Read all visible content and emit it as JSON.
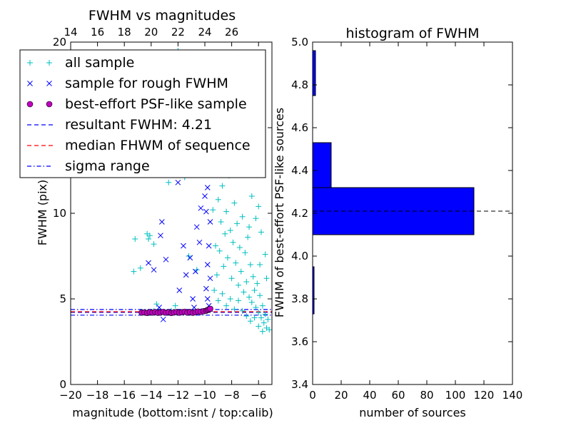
{
  "chart_data": [
    {
      "type": "scatter",
      "title": "FWHM vs magnitudes",
      "xlabel": "magnitude (bottom:isnt / top:calib)",
      "ylabel": "FWHM (pix)",
      "xlim": [
        -20,
        -5
      ],
      "ylim": [
        0,
        20
      ],
      "x_ticks": [
        -20,
        -18,
        -16,
        -14,
        -12,
        -10,
        -8,
        -6
      ],
      "x_tick_labels": [
        "−20",
        "−18",
        "−16",
        "−14",
        "−12",
        "−10",
        "−8",
        "−6"
      ],
      "y_ticks": [
        0,
        5,
        10,
        15,
        20
      ],
      "y_tick_labels": [
        "0",
        "5",
        "10",
        "15",
        "20"
      ],
      "top_axis": {
        "offset": 34,
        "ticks": [
          14,
          16,
          18,
          20,
          22,
          24,
          26
        ],
        "tick_labels": [
          "14",
          "16",
          "18",
          "20",
          "22",
          "24",
          "26"
        ]
      },
      "grid": false,
      "legend": {
        "placement": "upper-left",
        "entries": [
          {
            "label": "all sample",
            "marker": "+",
            "color": "#00bfbf"
          },
          {
            "label": "sample for rough FWHM",
            "marker": "x",
            "color": "#0000ff"
          },
          {
            "label": "best-effort PSF-like sample",
            "marker": "o",
            "color": "#bf00bf"
          },
          {
            "label": "resultant FWHM: 4.21",
            "linestyle": "dashed",
            "color": "#0000ff"
          },
          {
            "label": "median FHWM of sequence",
            "linestyle": "dashed",
            "color": "#ff0000"
          },
          {
            "label": "sigma range",
            "linestyle": "dashdot",
            "color": "#0000ff"
          }
        ]
      },
      "series": [
        {
          "name": "all sample",
          "marker": "+",
          "color": "#00bfbf",
          "points": [
            [
              -15.2,
              8.5
            ],
            [
              -14.3,
              8.8
            ],
            [
              -14.1,
              8.7
            ],
            [
              -13.8,
              8.2
            ],
            [
              -15.3,
              6.6
            ],
            [
              -14.8,
              6.8
            ],
            [
              -14.2,
              8.5
            ],
            [
              -14.2,
              15.2
            ],
            [
              -14.0,
              14.3
            ],
            [
              -12.7,
              11.8
            ],
            [
              -12.0,
              19.5
            ],
            [
              -11.8,
              19.3
            ],
            [
              -11.6,
              15.2
            ],
            [
              -10.5,
              14.8
            ],
            [
              -10.1,
              13.2
            ],
            [
              -11.5,
              12.1
            ],
            [
              -11.2,
              7.5
            ],
            [
              -10.6,
              6.7
            ],
            [
              -11.0,
              4.2
            ],
            [
              -12.5,
              4.3
            ],
            [
              -13.8,
              4.3
            ],
            [
              -13.6,
              4.7
            ],
            [
              -12.2,
              4.6
            ],
            [
              -9.5,
              12.5
            ],
            [
              -9.4,
              10.2
            ],
            [
              -9.2,
              8.1
            ],
            [
              -9.1,
              6.4
            ],
            [
              -9.0,
              10.8
            ],
            [
              -8.9,
              7.8
            ],
            [
              -8.8,
              9.5
            ],
            [
              -8.7,
              11.6
            ],
            [
              -8.6,
              6.9
            ],
            [
              -8.5,
              8.8
            ],
            [
              -8.4,
              10.1
            ],
            [
              -8.3,
              7.4
            ],
            [
              -8.2,
              12.2
            ],
            [
              -8.1,
              9.0
            ],
            [
              -8.0,
              6.2
            ],
            [
              -7.9,
              8.3
            ],
            [
              -7.8,
              10.6
            ],
            [
              -7.7,
              7.1
            ],
            [
              -7.6,
              9.4
            ],
            [
              -7.5,
              5.8
            ],
            [
              -7.4,
              8.0
            ],
            [
              -7.3,
              6.6
            ],
            [
              -7.2,
              9.8
            ],
            [
              -7.1,
              5.4
            ],
            [
              -7.0,
              7.7
            ],
            [
              -6.9,
              6.0
            ],
            [
              -6.8,
              8.6
            ],
            [
              -6.7,
              5.1
            ],
            [
              -6.6,
              7.0
            ],
            [
              -6.5,
              4.8
            ],
            [
              -6.4,
              6.3
            ],
            [
              -6.3,
              5.5
            ],
            [
              -6.2,
              4.5
            ],
            [
              -6.1,
              5.9
            ],
            [
              -6.0,
              4.2
            ],
            [
              -5.9,
              5.2
            ],
            [
              -5.8,
              3.9
            ],
            [
              -5.7,
              4.6
            ],
            [
              -5.6,
              3.6
            ],
            [
              -5.5,
              4.1
            ],
            [
              -5.4,
              3.3
            ],
            [
              -5.3,
              3.8
            ],
            [
              -5.2,
              3.2
            ],
            [
              -9.3,
              5.5
            ],
            [
              -9.0,
              4.9
            ],
            [
              -8.7,
              5.3
            ],
            [
              -8.4,
              4.6
            ],
            [
              -8.1,
              5.0
            ],
            [
              -7.8,
              4.4
            ],
            [
              -7.5,
              4.9
            ],
            [
              -7.2,
              4.3
            ],
            [
              -6.9,
              4.0
            ],
            [
              -6.6,
              3.7
            ],
            [
              -6.3,
              3.9
            ],
            [
              -6.0,
              3.4
            ],
            [
              -5.7,
              3.1
            ],
            [
              -9.6,
              14.5
            ],
            [
              -9.3,
              15.6
            ],
            [
              -9.0,
              13.9
            ],
            [
              -8.8,
              16.8
            ],
            [
              -8.5,
              14.7
            ],
            [
              -8.3,
              18.2
            ],
            [
              -8.0,
              15.3
            ],
            [
              -7.8,
              19.4
            ],
            [
              -7.5,
              16.2
            ],
            [
              -7.3,
              17.5
            ],
            [
              -7.0,
              14.0
            ],
            [
              -6.8,
              12.7
            ],
            [
              -6.5,
              11.0
            ],
            [
              -6.2,
              9.7
            ],
            [
              -6.0,
              10.4
            ],
            [
              -5.8,
              8.9
            ],
            [
              -5.5,
              7.6
            ],
            [
              -6.4,
              13.4
            ],
            [
              -8.9,
              19.0
            ],
            [
              -7.6,
              13.1
            ],
            [
              -6.7,
              9.2
            ],
            [
              -5.9,
              7.0
            ],
            [
              -5.4,
              6.2
            ]
          ]
        },
        {
          "name": "sample for rough FWHM",
          "marker": "x",
          "color": "#0000ff",
          "points": [
            [
              -13.2,
              9.5
            ],
            [
              -13.3,
              8.7
            ],
            [
              -14.2,
              7.1
            ],
            [
              -13.8,
              6.7
            ],
            [
              -12.9,
              7.3
            ],
            [
              -12.0,
              11.8
            ],
            [
              -11.9,
              5.5
            ],
            [
              -11.6,
              8.1
            ],
            [
              -11.4,
              6.4
            ],
            [
              -11.1,
              7.4
            ],
            [
              -10.7,
              6.6
            ],
            [
              -10.9,
              5.0
            ],
            [
              -10.3,
              10.3
            ],
            [
              -10.6,
              9.2
            ],
            [
              -10.4,
              8.3
            ],
            [
              -10.5,
              12.9
            ],
            [
              -10.2,
              16.7
            ],
            [
              -10.0,
              18.4
            ],
            [
              -9.8,
              14.7
            ],
            [
              -9.9,
              15.8
            ],
            [
              -9.7,
              13.5
            ],
            [
              -9.6,
              17.7
            ],
            [
              -9.8,
              11.5
            ],
            [
              -9.7,
              12.7
            ],
            [
              -9.6,
              9.5
            ],
            [
              -9.9,
              10.1
            ],
            [
              -9.7,
              8.1
            ],
            [
              -9.8,
              7.0
            ],
            [
              -9.6,
              6.2
            ],
            [
              -9.8,
              5.0
            ],
            [
              -9.9,
              5.6
            ],
            [
              -13.4,
              4.5
            ],
            [
              -13.1,
              3.8
            ],
            [
              -10.8,
              4.5
            ],
            [
              -10.1,
              4.3
            ],
            [
              -9.7,
              4.6
            ],
            [
              -9.6,
              4.4
            ],
            [
              -9.9,
              18.9
            ],
            [
              -10.1,
              17.5
            ],
            [
              -9.7,
              16.3
            ],
            [
              -9.6,
              14.0
            ],
            [
              -10.0,
              11.0
            ]
          ]
        },
        {
          "name": "best-effort PSF-like sample",
          "marker": "o",
          "color": "#bf00bf",
          "points": [
            [
              -14.7,
              4.2
            ],
            [
              -14.5,
              4.21
            ],
            [
              -14.3,
              4.18
            ],
            [
              -14.1,
              4.22
            ],
            [
              -13.9,
              4.2
            ],
            [
              -13.7,
              4.23
            ],
            [
              -13.5,
              4.19
            ],
            [
              -13.3,
              4.21
            ],
            [
              -13.1,
              4.24
            ],
            [
              -12.9,
              4.2
            ],
            [
              -12.7,
              4.22
            ],
            [
              -12.5,
              4.18
            ],
            [
              -12.3,
              4.21
            ],
            [
              -12.1,
              4.23
            ],
            [
              -11.9,
              4.2
            ],
            [
              -11.7,
              4.22
            ],
            [
              -11.5,
              4.25
            ],
            [
              -11.3,
              4.2
            ],
            [
              -11.1,
              4.23
            ],
            [
              -10.9,
              4.19
            ],
            [
              -10.7,
              4.22
            ],
            [
              -10.5,
              4.26
            ],
            [
              -10.3,
              4.24
            ],
            [
              -10.1,
              4.28
            ],
            [
              -9.9,
              4.31
            ],
            [
              -9.8,
              4.35
            ],
            [
              -9.7,
              4.38
            ],
            [
              -9.6,
              4.42
            ]
          ]
        }
      ],
      "lines": [
        {
          "name": "resultant FWHM: 4.21",
          "y": 4.21,
          "color": "#0000ff",
          "linestyle": "dashed"
        },
        {
          "name": "median FHWM of sequence",
          "y": 4.25,
          "color": "#ff0000",
          "linestyle": "dashed"
        },
        {
          "name": "sigma range",
          "y": 4.05,
          "color": "#0000ff",
          "linestyle": "dashdot"
        },
        {
          "name": "sigma range",
          "y": 4.38,
          "color": "#0000ff",
          "linestyle": "dashdot"
        }
      ]
    },
    {
      "type": "bar",
      "orientation": "horizontal",
      "title": "histogram of FWHM",
      "xlabel": "number of sources",
      "ylabel": "FWHM of best-effort PSF-like sources",
      "xlim": [
        0,
        140
      ],
      "ylim": [
        3.4,
        5.0
      ],
      "x_ticks": [
        0,
        20,
        40,
        60,
        80,
        100,
        120,
        140
      ],
      "x_tick_labels": [
        "0",
        "20",
        "40",
        "60",
        "80",
        "100",
        "120",
        "140"
      ],
      "y_ticks": [
        3.4,
        3.6,
        3.8,
        4.0,
        4.2,
        4.4,
        4.6,
        4.8,
        5.0
      ],
      "y_tick_labels": [
        "3.4",
        "3.6",
        "3.8",
        "4.0",
        "4.2",
        "4.4",
        "4.6",
        "4.8",
        "5.0"
      ],
      "bar_color": "#0000ff",
      "bins": [
        {
          "y0": 3.73,
          "y1": 3.95,
          "count": 1
        },
        {
          "y0": 4.1,
          "y1": 4.32,
          "count": 113
        },
        {
          "y0": 4.32,
          "y1": 4.53,
          "count": 13
        },
        {
          "y0": 4.75,
          "y1": 4.96,
          "count": 2
        }
      ],
      "reference_line": {
        "y": 4.21,
        "color": "#000000",
        "linestyle": "dashed"
      },
      "grid": false
    }
  ]
}
